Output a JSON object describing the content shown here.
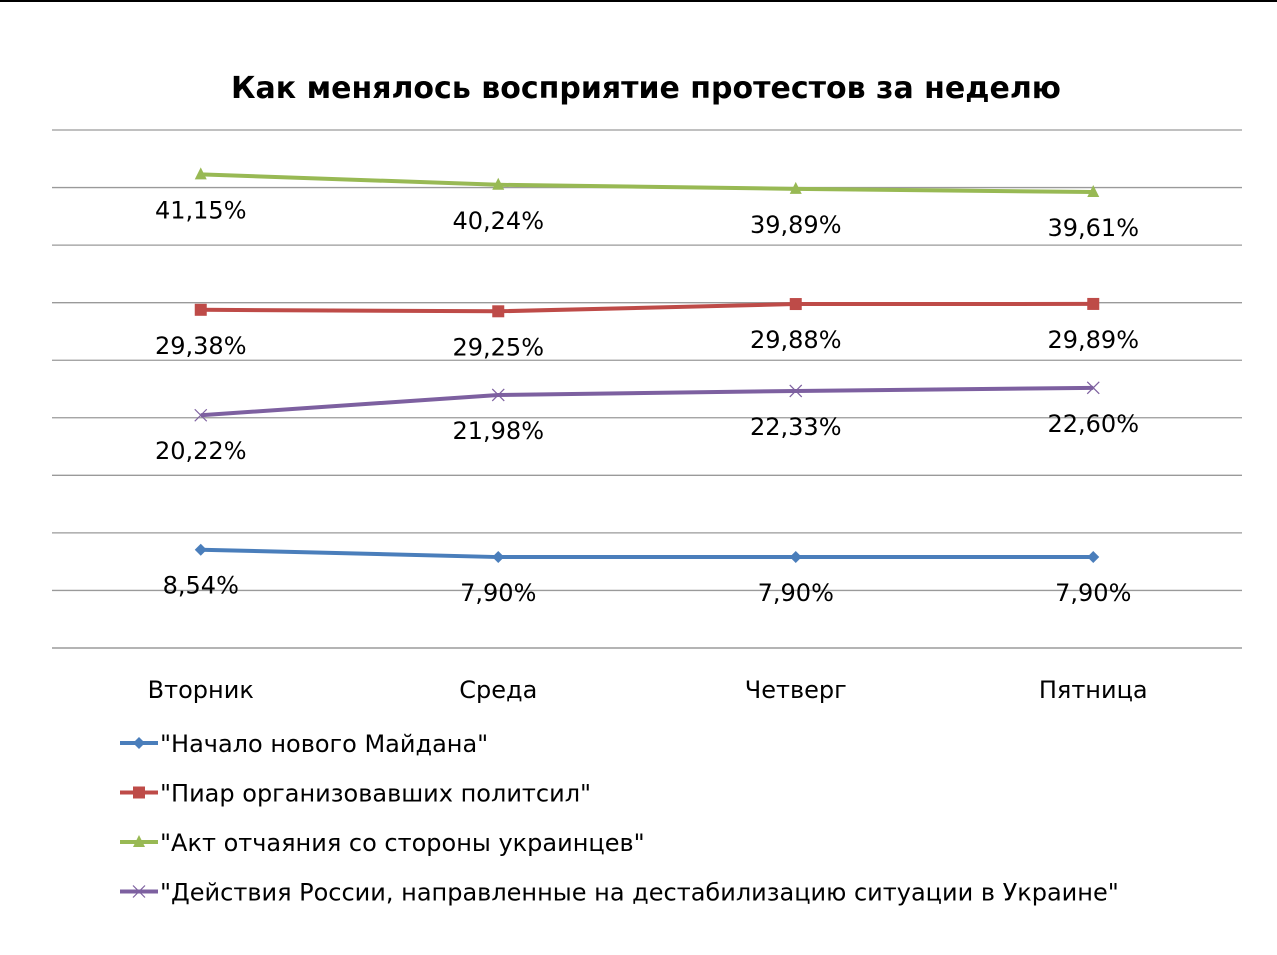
{
  "chart_data": {
    "type": "line",
    "title": "Как менялось восприятие протестов за неделю",
    "xlabel": "",
    "ylabel": "",
    "categories": [
      "Вторник",
      "Среда",
      "Четверг",
      "Пятница"
    ],
    "ylim": [
      0,
      45
    ],
    "grid_step": 5,
    "grid": true,
    "y_tick_labels_visible": false,
    "legend_position": "bottom",
    "series": [
      {
        "name": "\"Начало нового Майдана\"",
        "values": [
          8.54,
          7.9,
          7.9,
          7.9
        ],
        "labels": [
          "8,54%",
          "7,90%",
          "7,90%",
          "7,90%"
        ],
        "color": "#4a7ebb",
        "marker": "diamond"
      },
      {
        "name": "\"Пиар организовавших политсил\"",
        "values": [
          29.38,
          29.25,
          29.88,
          29.89
        ],
        "labels": [
          "29,38%",
          "29,25%",
          "29,88%",
          "29,89%"
        ],
        "color": "#be4b48",
        "marker": "square"
      },
      {
        "name": "\"Акт отчаяния со стороны украинцев\"",
        "values": [
          41.15,
          40.24,
          39.89,
          39.61
        ],
        "labels": [
          "41,15%",
          "40,24%",
          "39,89%",
          "39,61%"
        ],
        "color": "#98b954",
        "marker": "triangle"
      },
      {
        "name": "\"Действия России, направленные на дестабилизацию ситуации в Украине\"",
        "values": [
          20.22,
          21.98,
          22.33,
          22.6
        ],
        "labels": [
          "20,22%",
          "21,98%",
          "22,33%",
          "22,60%"
        ],
        "color": "#7d60a0",
        "marker": "x"
      }
    ]
  }
}
